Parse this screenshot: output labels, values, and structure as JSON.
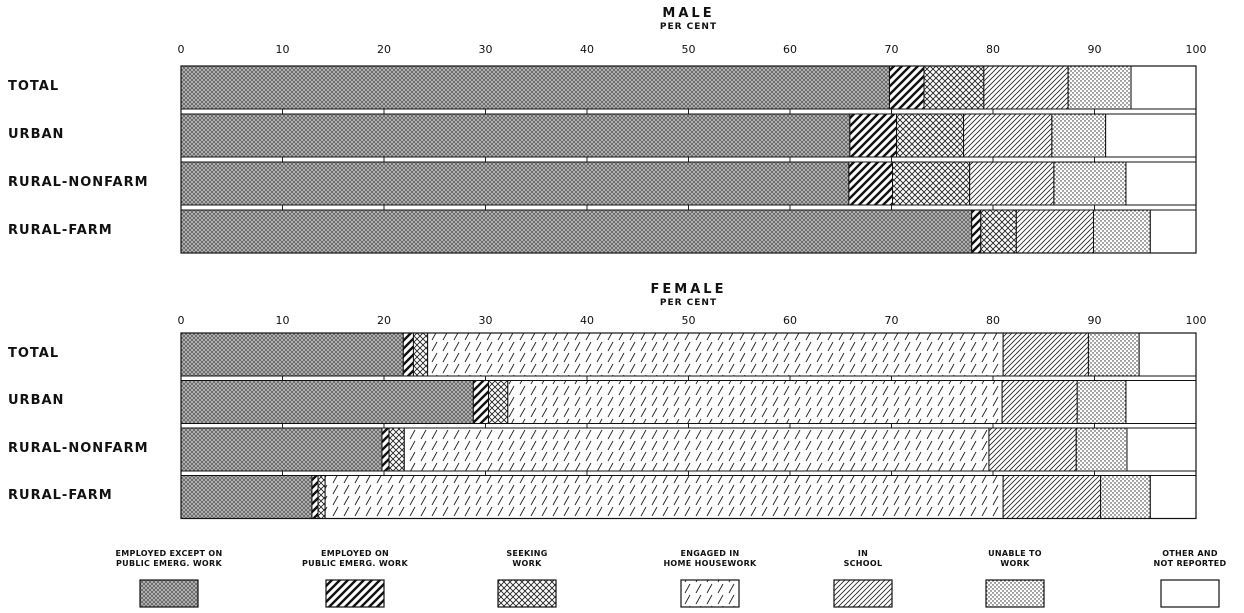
{
  "chart_data": {
    "type": "bar",
    "stacked": true,
    "orientation": "horizontal",
    "xlim": [
      0,
      100
    ],
    "xticks": [
      "0",
      "10",
      "20",
      "30",
      "40",
      "50",
      "60",
      "70",
      "80",
      "90",
      "100"
    ],
    "categories": [
      "TOTAL",
      "URBAN",
      "RURAL-NONFARM",
      "RURAL-FARM"
    ],
    "legend": [
      {
        "key": "employed",
        "line1": "EMPLOYED EXCEPT ON",
        "line2": "PUBLIC EMERG. WORK",
        "pattern": "crosshatch-dense"
      },
      {
        "key": "emerg",
        "line1": "EMPLOYED ON",
        "line2": "PUBLIC EMERG. WORK",
        "pattern": "diagonal-heavy"
      },
      {
        "key": "seeking",
        "line1": "SEEKING",
        "line2": "WORK",
        "pattern": "crosshatch-open"
      },
      {
        "key": "home",
        "line1": "ENGAGED IN",
        "line2": "HOME HOUSEWORK",
        "pattern": "diagonal-dashed"
      },
      {
        "key": "school",
        "line1": "IN",
        "line2": "SCHOOL",
        "pattern": "diagonal-fine"
      },
      {
        "key": "unable",
        "line1": "UNABLE TO",
        "line2": "WORK",
        "pattern": "dots"
      },
      {
        "key": "other",
        "line1": "OTHER AND",
        "line2": "NOT REPORTED",
        "pattern": "blank"
      }
    ],
    "panels": [
      {
        "title": "MALE",
        "subtitle": "PER CENT",
        "rows": [
          {
            "category": "TOTAL",
            "values": {
              "employed": 69.8,
              "emerg": 3.4,
              "seeking": 5.9,
              "home": 0,
              "school": 8.3,
              "unable": 6.2,
              "other": 6.4
            }
          },
          {
            "category": "URBAN",
            "values": {
              "employed": 65.9,
              "emerg": 4.6,
              "seeking": 6.6,
              "home": 0,
              "school": 8.7,
              "unable": 5.3,
              "other": 8.9
            }
          },
          {
            "category": "RURAL-NONFARM",
            "values": {
              "employed": 65.8,
              "emerg": 4.3,
              "seeking": 7.6,
              "home": 0,
              "school": 8.3,
              "unable": 7.1,
              "other": 6.9
            }
          },
          {
            "category": "RURAL-FARM",
            "values": {
              "employed": 77.9,
              "emerg": 0.9,
              "seeking": 3.5,
              "home": 0,
              "school": 7.6,
              "unable": 5.6,
              "other": 4.5
            }
          }
        ]
      },
      {
        "title": "FEMALE",
        "subtitle": "PER CENT",
        "rows": [
          {
            "category": "TOTAL",
            "values": {
              "employed": 21.9,
              "emerg": 1.0,
              "seeking": 1.4,
              "home": 56.7,
              "school": 8.4,
              "unable": 5.0,
              "other": 5.6
            }
          },
          {
            "category": "URBAN",
            "values": {
              "employed": 28.8,
              "emerg": 1.5,
              "seeking": 1.9,
              "home": 48.7,
              "school": 7.4,
              "unable": 4.8,
              "other": 6.9
            }
          },
          {
            "category": "RURAL-NONFARM",
            "values": {
              "employed": 19.8,
              "emerg": 0.7,
              "seeking": 1.5,
              "home": 57.6,
              "school": 8.6,
              "unable": 5.0,
              "other": 6.8
            }
          },
          {
            "category": "RURAL-FARM",
            "values": {
              "employed": 12.9,
              "emerg": 0.6,
              "seeking": 0.7,
              "home": 66.8,
              "school": 9.6,
              "unable": 4.9,
              "other": 4.5
            }
          }
        ]
      }
    ]
  }
}
